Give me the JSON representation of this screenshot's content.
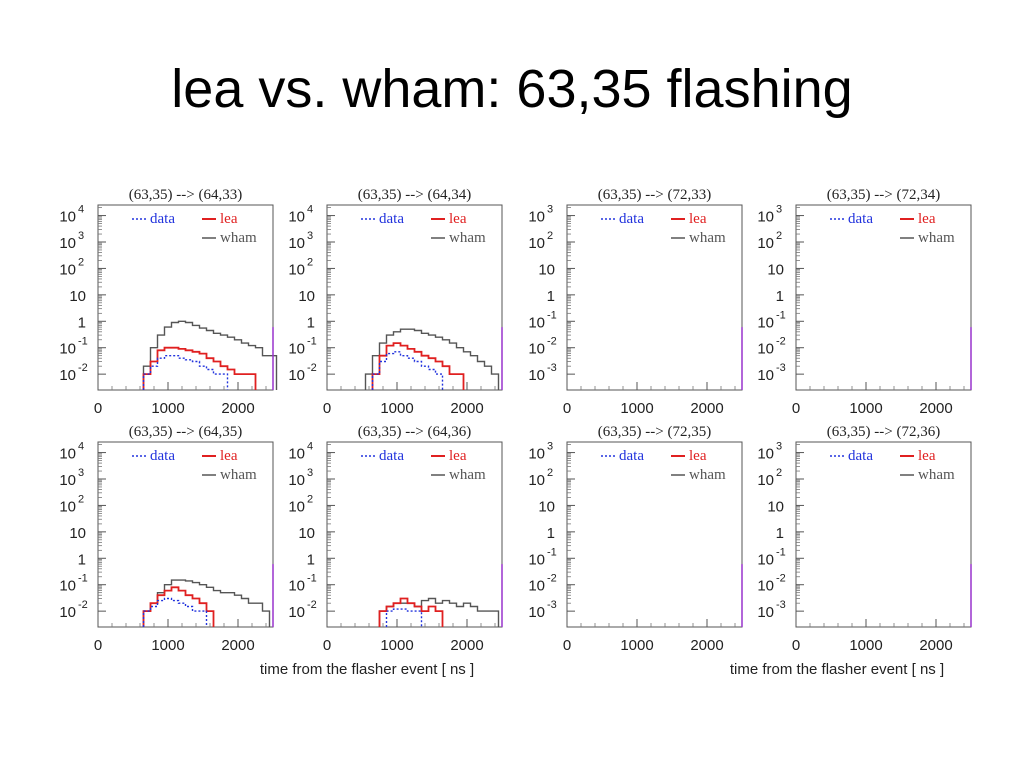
{
  "slide": {
    "title": "lea vs. wham: 63,35 flashing"
  },
  "xlabel": "time from the flasher event [ ns ]",
  "colors": {
    "data": "#2233dd",
    "lea": "#e02020",
    "wham": "#555555",
    "marker": "#9933cc"
  },
  "chart_data": [
    {
      "type": "line",
      "title": "(63,35) --> (64,33)",
      "x_ticks": [
        "0",
        "1000",
        "2000"
      ],
      "xlim": [
        0,
        2500
      ],
      "y_ticks": [
        {
          "m": "10",
          "e": "4"
        },
        {
          "m": "10",
          "e": "3"
        },
        {
          "m": "10",
          "e": "2"
        },
        {
          "m": "10",
          "e": ""
        },
        {
          "m": "1",
          "e": ""
        },
        {
          "m": "10",
          "e": "-1"
        },
        {
          "m": "10",
          "e": "-2"
        }
      ],
      "ylim_decades": [
        -2.6,
        4.4
      ],
      "legend": {
        "data": "data",
        "lea": "lea",
        "wham": "wham"
      },
      "series": [
        {
          "key": "wham",
          "x": [
            700,
            800,
            900,
            1000,
            1100,
            1200,
            1300,
            1400,
            1500,
            1600,
            1700,
            1800,
            1900,
            2000,
            2100,
            2200,
            2300,
            2400,
            2500
          ],
          "y": [
            0.02,
            0.1,
            0.3,
            0.6,
            0.9,
            1.0,
            0.9,
            0.7,
            0.55,
            0.45,
            0.35,
            0.3,
            0.25,
            0.2,
            0.15,
            0.12,
            0.1,
            0.05,
            0.05
          ]
        },
        {
          "key": "lea",
          "x": [
            700,
            800,
            900,
            1000,
            1100,
            1200,
            1300,
            1400,
            1500,
            1600,
            1700,
            1800,
            1900,
            2000,
            2100,
            2200
          ],
          "y": [
            0.01,
            0.03,
            0.08,
            0.1,
            0.1,
            0.09,
            0.08,
            0.07,
            0.06,
            0.04,
            0.03,
            0.02,
            0.015,
            0.01,
            0.01,
            0.01
          ]
        },
        {
          "key": "data",
          "x": [
            700,
            800,
            900,
            1000,
            1100,
            1200,
            1300,
            1400,
            1500,
            1600,
            1700,
            1800
          ],
          "y": [
            0.01,
            0.02,
            0.04,
            0.05,
            0.05,
            0.04,
            0.035,
            0.03,
            0.02,
            0.015,
            0.01,
            0.01
          ]
        }
      ]
    },
    {
      "type": "line",
      "title": "(63,35) --> (64,34)",
      "x_ticks": [
        "0",
        "1000",
        "2000"
      ],
      "xlim": [
        0,
        2500
      ],
      "y_ticks": [
        {
          "m": "10",
          "e": "4"
        },
        {
          "m": "10",
          "e": "3"
        },
        {
          "m": "10",
          "e": "2"
        },
        {
          "m": "10",
          "e": ""
        },
        {
          "m": "1",
          "e": ""
        },
        {
          "m": "10",
          "e": "-1"
        },
        {
          "m": "10",
          "e": "-2"
        }
      ],
      "ylim_decades": [
        -2.6,
        4.4
      ],
      "legend": {
        "data": "data",
        "lea": "lea",
        "wham": "wham"
      },
      "series": [
        {
          "key": "wham",
          "x": [
            600,
            700,
            800,
            900,
            1000,
            1100,
            1200,
            1300,
            1400,
            1500,
            1600,
            1700,
            1800,
            1900,
            2000,
            2100,
            2200,
            2300,
            2400
          ],
          "y": [
            0.01,
            0.05,
            0.15,
            0.3,
            0.4,
            0.5,
            0.5,
            0.45,
            0.35,
            0.3,
            0.25,
            0.2,
            0.15,
            0.1,
            0.07,
            0.05,
            0.03,
            0.02,
            0.01
          ]
        },
        {
          "key": "lea",
          "x": [
            700,
            800,
            900,
            1000,
            1100,
            1200,
            1300,
            1400,
            1500,
            1600,
            1700,
            1800,
            1900
          ],
          "y": [
            0.01,
            0.05,
            0.12,
            0.15,
            0.12,
            0.09,
            0.07,
            0.05,
            0.04,
            0.03,
            0.02,
            0.01,
            0.01
          ]
        },
        {
          "key": "data",
          "x": [
            700,
            800,
            900,
            1000,
            1100,
            1200,
            1300,
            1400,
            1500,
            1600
          ],
          "y": [
            0.01,
            0.03,
            0.06,
            0.07,
            0.05,
            0.04,
            0.03,
            0.02,
            0.015,
            0.01
          ]
        }
      ]
    },
    {
      "type": "line",
      "title": "(63,35) --> (72,33)",
      "x_ticks": [
        "0",
        "1000",
        "2000"
      ],
      "xlim": [
        0,
        2500
      ],
      "y_ticks": [
        {
          "m": "10",
          "e": "3"
        },
        {
          "m": "10",
          "e": "2"
        },
        {
          "m": "10",
          "e": ""
        },
        {
          "m": "1",
          "e": ""
        },
        {
          "m": "10",
          "e": "-1"
        },
        {
          "m": "10",
          "e": "-2"
        },
        {
          "m": "10",
          "e": "-3"
        }
      ],
      "ylim_decades": [
        -3.6,
        3.4
      ],
      "legend": {
        "data": "data",
        "lea": "lea",
        "wham": "wham"
      },
      "series": []
    },
    {
      "type": "line",
      "title": "(63,35) --> (72,34)",
      "x_ticks": [
        "0",
        "1000",
        "2000"
      ],
      "xlim": [
        0,
        2500
      ],
      "y_ticks": [
        {
          "m": "10",
          "e": "3"
        },
        {
          "m": "10",
          "e": "2"
        },
        {
          "m": "10",
          "e": ""
        },
        {
          "m": "1",
          "e": ""
        },
        {
          "m": "10",
          "e": "-1"
        },
        {
          "m": "10",
          "e": "-2"
        },
        {
          "m": "10",
          "e": "-3"
        }
      ],
      "ylim_decades": [
        -3.6,
        3.4
      ],
      "legend": {
        "data": "data",
        "lea": "lea",
        "wham": "wham"
      },
      "series": []
    },
    {
      "type": "line",
      "title": "(63,35) --> (64,35)",
      "x_ticks": [
        "0",
        "1000",
        "2000"
      ],
      "xlim": [
        0,
        2500
      ],
      "y_ticks": [
        {
          "m": "10",
          "e": "4"
        },
        {
          "m": "10",
          "e": "3"
        },
        {
          "m": "10",
          "e": "2"
        },
        {
          "m": "10",
          "e": ""
        },
        {
          "m": "1",
          "e": ""
        },
        {
          "m": "10",
          "e": "-1"
        },
        {
          "m": "10",
          "e": "-2"
        }
      ],
      "ylim_decades": [
        -2.6,
        4.4
      ],
      "legend": {
        "data": "data",
        "lea": "lea",
        "wham": "wham"
      },
      "series": [
        {
          "key": "wham",
          "x": [
            700,
            800,
            900,
            1000,
            1100,
            1200,
            1300,
            1400,
            1500,
            1600,
            1700,
            1800,
            1900,
            2000,
            2100,
            2200,
            2300,
            2400
          ],
          "y": [
            0.01,
            0.02,
            0.05,
            0.1,
            0.15,
            0.15,
            0.14,
            0.12,
            0.1,
            0.08,
            0.06,
            0.05,
            0.05,
            0.04,
            0.03,
            0.02,
            0.02,
            0.01
          ]
        },
        {
          "key": "lea",
          "x": [
            700,
            800,
            900,
            1000,
            1100,
            1200,
            1300,
            1400,
            1500,
            1600
          ],
          "y": [
            0.01,
            0.02,
            0.04,
            0.06,
            0.08,
            0.06,
            0.04,
            0.03,
            0.02,
            0.01
          ]
        },
        {
          "key": "data",
          "x": [
            700,
            800,
            900,
            1000,
            1100,
            1200,
            1300,
            1400,
            1500
          ],
          "y": [
            0.01,
            0.015,
            0.025,
            0.03,
            0.025,
            0.02,
            0.015,
            0.01,
            0.01
          ]
        }
      ]
    },
    {
      "type": "line",
      "title": "(63,35) --> (64,36)",
      "x_ticks": [
        "0",
        "1000",
        "2000"
      ],
      "xlim": [
        0,
        2500
      ],
      "y_ticks": [
        {
          "m": "10",
          "e": "4"
        },
        {
          "m": "10",
          "e": "3"
        },
        {
          "m": "10",
          "e": "2"
        },
        {
          "m": "10",
          "e": ""
        },
        {
          "m": "1",
          "e": ""
        },
        {
          "m": "10",
          "e": "-1"
        },
        {
          "m": "10",
          "e": "-2"
        }
      ],
      "ylim_decades": [
        -2.6,
        4.4
      ],
      "legend": {
        "data": "data",
        "lea": "lea",
        "wham": "wham"
      },
      "series": [
        {
          "key": "wham",
          "x": [
            800,
            900,
            1000,
            1100,
            1200,
            1300,
            1400,
            1500,
            1600,
            1700,
            1800,
            1900,
            2000,
            2100,
            2200,
            2300,
            2400
          ],
          "y": [
            0.01,
            0.015,
            0.02,
            0.02,
            0.02,
            0.015,
            0.025,
            0.03,
            0.02,
            0.025,
            0.02,
            0.015,
            0.02,
            0.015,
            0.01,
            0.01,
            0.01
          ]
        },
        {
          "key": "lea",
          "x": [
            800,
            900,
            1000,
            1100,
            1200,
            1300,
            1400,
            1500,
            1600
          ],
          "y": [
            0.01,
            0.015,
            0.02,
            0.03,
            0.02,
            0.015,
            0.01,
            0.015,
            0.01
          ]
        },
        {
          "key": "data",
          "x": [
            900,
            1000,
            1100,
            1200,
            1300
          ],
          "y": [
            0.01,
            0.012,
            0.012,
            0.01,
            0.01
          ]
        }
      ]
    },
    {
      "type": "line",
      "title": "(63,35) --> (72,35)",
      "x_ticks": [
        "0",
        "1000",
        "2000"
      ],
      "xlim": [
        0,
        2500
      ],
      "y_ticks": [
        {
          "m": "10",
          "e": "3"
        },
        {
          "m": "10",
          "e": "2"
        },
        {
          "m": "10",
          "e": ""
        },
        {
          "m": "1",
          "e": ""
        },
        {
          "m": "10",
          "e": "-1"
        },
        {
          "m": "10",
          "e": "-2"
        },
        {
          "m": "10",
          "e": "-3"
        }
      ],
      "ylim_decades": [
        -3.6,
        3.4
      ],
      "legend": {
        "data": "data",
        "lea": "lea",
        "wham": "wham"
      },
      "series": []
    },
    {
      "type": "line",
      "title": "(63,35) --> (72,36)",
      "x_ticks": [
        "0",
        "1000",
        "2000"
      ],
      "xlim": [
        0,
        2500
      ],
      "y_ticks": [
        {
          "m": "10",
          "e": "3"
        },
        {
          "m": "10",
          "e": "2"
        },
        {
          "m": "10",
          "e": ""
        },
        {
          "m": "1",
          "e": ""
        },
        {
          "m": "10",
          "e": "-1"
        },
        {
          "m": "10",
          "e": "-2"
        },
        {
          "m": "10",
          "e": "-3"
        }
      ],
      "ylim_decades": [
        -3.6,
        3.4
      ],
      "legend": {
        "data": "data",
        "lea": "lea",
        "wham": "wham"
      },
      "series": []
    }
  ]
}
